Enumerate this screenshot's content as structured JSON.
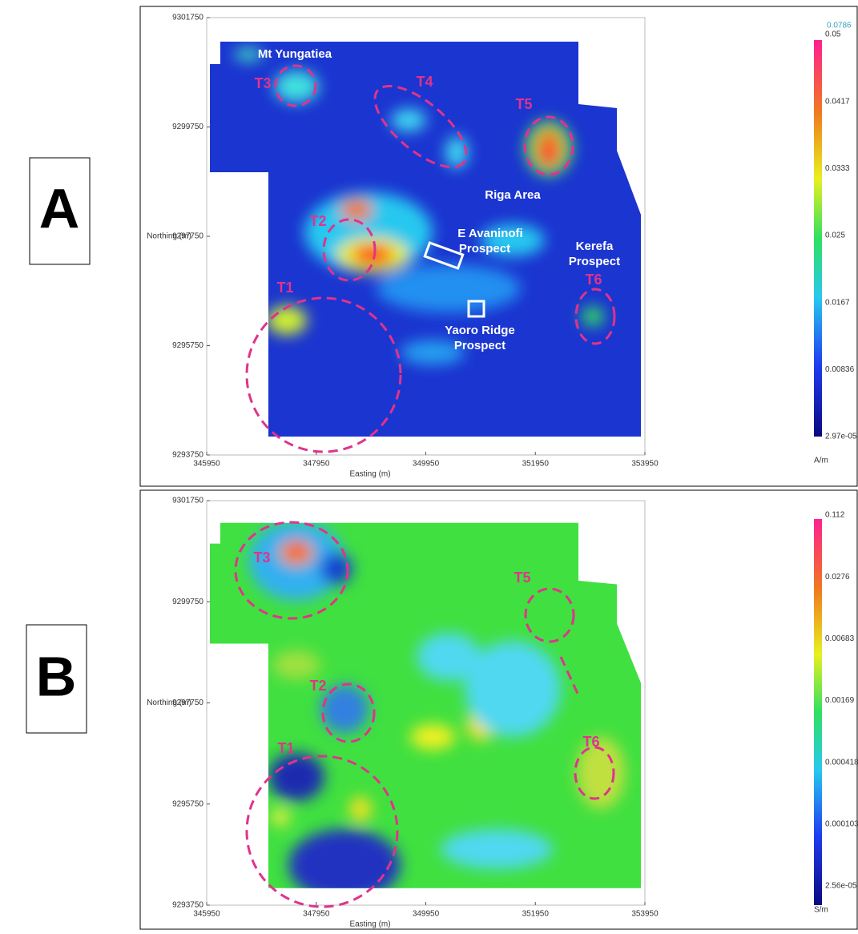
{
  "panels": [
    {
      "label": "A",
      "y_axis_title": "Northing (m)",
      "x_axis_title": "Easting (m)",
      "yticks": [
        "9301750",
        "9299750",
        "9297750",
        "9295750",
        "9293750"
      ],
      "xticks": [
        "345950",
        "347950",
        "349950",
        "351950",
        "353950"
      ],
      "annotations": {
        "mt": "Mt Yungatiea",
        "t3": "T3",
        "t4": "T4",
        "t5": "T5",
        "riga": "Riga Area",
        "t2": "T2",
        "eav1": "E Avaninofi",
        "eav2": "Prospect",
        "ker1": "Kerefa",
        "ker2": "Prospect",
        "t6": "T6",
        "t1": "T1",
        "yao1": "Yaoro Ridge",
        "yao2": "Prospect"
      },
      "colorbar": {
        "max": "0.0786",
        "labels": [
          "0.05",
          "0.0417",
          "0.0333",
          "0.025",
          "0.0167",
          "0.00836",
          "2.97e-05"
        ],
        "unit": "A/m"
      }
    },
    {
      "label": "B",
      "y_axis_title": "Northing (m)",
      "x_axis_title": "Easting (m)",
      "yticks": [
        "9301750",
        "9299750",
        "9297750",
        "9295750",
        "9293750"
      ],
      "xticks": [
        "345950",
        "347950",
        "349950",
        "351950",
        "353950"
      ],
      "annotations": {
        "t3": "T3",
        "t5": "T5",
        "t2": "T2",
        "t6": "T6",
        "t1": "T1"
      },
      "colorbar": {
        "labels": [
          "0.112",
          "0.0276",
          "0.00683",
          "0.00169",
          "0.000418",
          "0.000103",
          "2.56e-05"
        ],
        "unit": "S/m"
      }
    }
  ]
}
